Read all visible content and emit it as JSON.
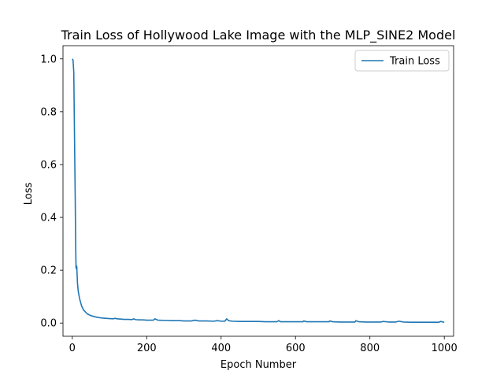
{
  "chart_data": {
    "type": "line",
    "title": "Train Loss of Hollywood Lake Image with the MLP_SINE2 Model",
    "xlabel": "Epoch Number",
    "ylabel": "Loss",
    "xlim": [
      -25,
      1025
    ],
    "ylim": [
      -0.05,
      1.05
    ],
    "xticks": [
      0,
      200,
      400,
      600,
      800,
      1000
    ],
    "yticks": [
      0.0,
      0.2,
      0.4,
      0.6,
      0.8,
      1.0
    ],
    "grid": false,
    "legend_position": "top-right",
    "series": [
      {
        "name": "Train Loss",
        "color": "#1f77b4",
        "x": [
          0,
          2,
          4,
          6,
          8,
          9,
          10,
          11,
          12,
          14,
          16,
          20,
          25,
          30,
          40,
          50,
          60,
          70,
          80,
          90,
          100,
          110,
          115,
          120,
          130,
          140,
          150,
          160,
          165,
          170,
          180,
          190,
          200,
          210,
          218,
          222,
          230,
          250,
          270,
          290,
          300,
          320,
          330,
          340,
          360,
          380,
          390,
          400,
          410,
          415,
          420,
          430,
          450,
          470,
          490,
          500,
          520,
          540,
          550,
          555,
          560,
          580,
          600,
          620,
          622,
          630,
          650,
          670,
          690,
          692,
          700,
          720,
          740,
          760,
          762,
          770,
          790,
          810,
          830,
          835,
          850,
          870,
          878,
          890,
          910,
          930,
          950,
          970,
          985,
          990,
          1000
        ],
        "values": [
          1.0,
          0.995,
          0.95,
          0.7,
          0.45,
          0.3,
          0.21,
          0.205,
          0.215,
          0.15,
          0.12,
          0.09,
          0.065,
          0.05,
          0.035,
          0.028,
          0.024,
          0.021,
          0.019,
          0.018,
          0.017,
          0.016,
          0.018,
          0.016,
          0.015,
          0.014,
          0.014,
          0.013,
          0.016,
          0.013,
          0.012,
          0.012,
          0.011,
          0.011,
          0.011,
          0.016,
          0.011,
          0.01,
          0.009,
          0.009,
          0.008,
          0.008,
          0.011,
          0.008,
          0.008,
          0.007,
          0.009,
          0.007,
          0.007,
          0.016,
          0.009,
          0.007,
          0.006,
          0.006,
          0.006,
          0.006,
          0.005,
          0.005,
          0.005,
          0.009,
          0.005,
          0.005,
          0.005,
          0.005,
          0.008,
          0.005,
          0.005,
          0.005,
          0.005,
          0.008,
          0.005,
          0.004,
          0.004,
          0.004,
          0.009,
          0.005,
          0.004,
          0.004,
          0.004,
          0.006,
          0.004,
          0.004,
          0.007,
          0.004,
          0.003,
          0.003,
          0.003,
          0.003,
          0.003,
          0.006,
          0.003
        ]
      }
    ]
  }
}
